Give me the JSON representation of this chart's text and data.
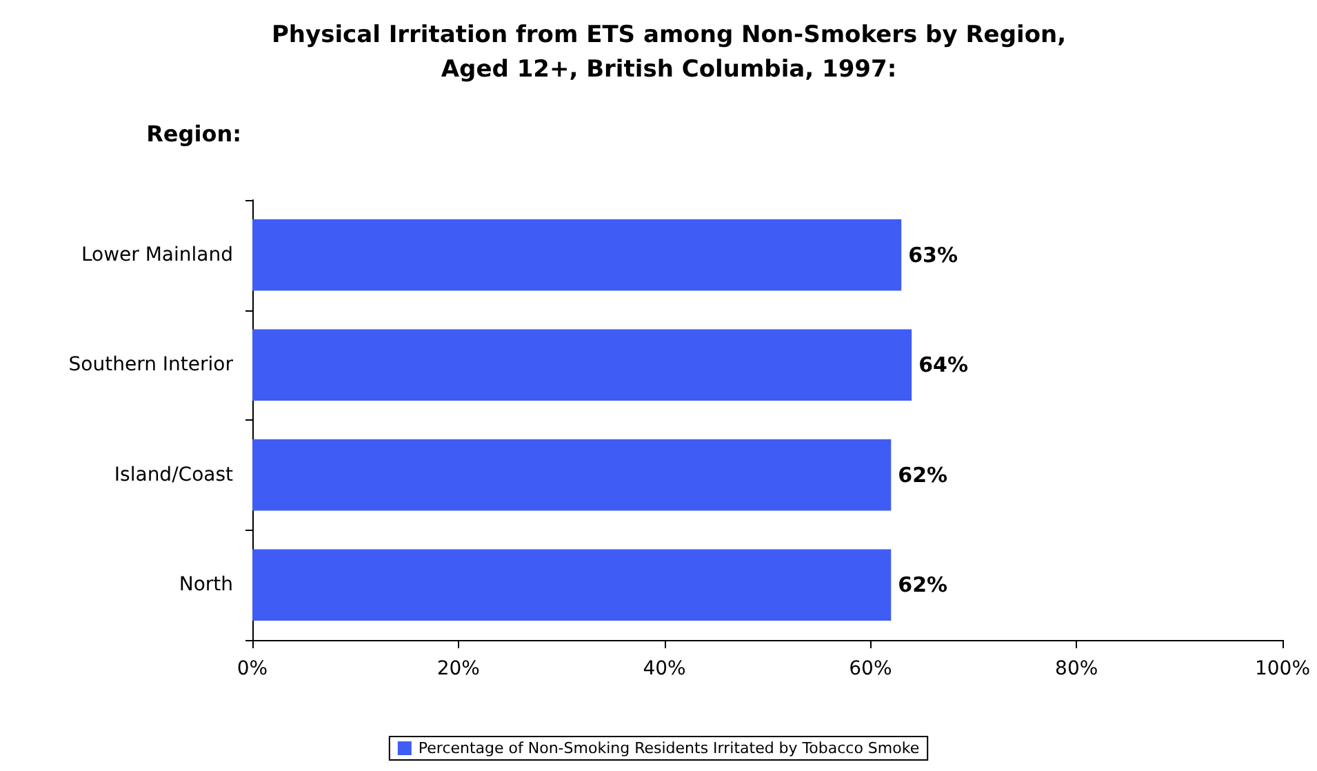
{
  "chart_data": {
    "type": "bar",
    "orientation": "horizontal",
    "title": "Physical Irritation from ETS among Non-Smokers by Region,\nAged 12+, British Columbia, 1997:",
    "ylabel": "Region:",
    "categories": [
      "Lower Mainland",
      "Southern Interior",
      "Island/Coast",
      "North"
    ],
    "series": [
      {
        "name": "Percentage of Non-Smoking Residents Irritated by Tobacco Smoke",
        "color": "#3f5cf5",
        "values": [
          63,
          64,
          62,
          62
        ]
      }
    ],
    "value_labels": [
      "63%",
      "64%",
      "62%",
      "62%"
    ],
    "xlim": [
      0,
      100
    ],
    "xticks": [
      {
        "value": 0,
        "label": "0%"
      },
      {
        "value": 20,
        "label": "20%"
      },
      {
        "value": 40,
        "label": "40%"
      },
      {
        "value": 60,
        "label": "60%"
      },
      {
        "value": 80,
        "label": "80%"
      },
      {
        "value": 100,
        "label": "100%"
      }
    ],
    "grid": false,
    "legend": "bottom"
  }
}
